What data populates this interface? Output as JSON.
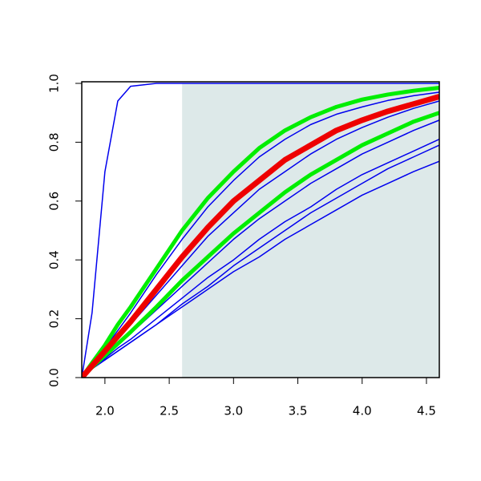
{
  "chart_data": {
    "type": "line",
    "x": [
      1.82,
      1.9,
      2.0,
      2.1,
      2.2,
      2.4,
      2.6,
      2.8,
      3.0,
      3.2,
      3.4,
      3.6,
      3.8,
      4.0,
      4.2,
      4.4,
      4.6
    ],
    "series": [
      {
        "color": "#0000ee",
        "width": 1.5,
        "values": [
          0,
          0.22,
          0.7,
          0.94,
          0.99,
          1,
          1,
          1,
          1,
          1,
          1,
          1,
          1,
          1,
          1,
          1,
          1
        ]
      },
      {
        "color": "#0000ee",
        "width": 1.5,
        "values": [
          0,
          0.03,
          0.06,
          0.09,
          0.12,
          0.18,
          0.24,
          0.3,
          0.36,
          0.41,
          0.47,
          0.52,
          0.57,
          0.62,
          0.66,
          0.7,
          0.735
        ]
      },
      {
        "color": "#0000ee",
        "width": 1.5,
        "values": [
          0,
          0.03,
          0.06,
          0.09,
          0.12,
          0.18,
          0.25,
          0.31,
          0.38,
          0.44,
          0.5,
          0.56,
          0.61,
          0.66,
          0.71,
          0.75,
          0.79
        ]
      },
      {
        "color": "#0000ee",
        "width": 1.5,
        "values": [
          0,
          0.03,
          0.065,
          0.1,
          0.13,
          0.2,
          0.27,
          0.34,
          0.4,
          0.47,
          0.53,
          0.58,
          0.64,
          0.69,
          0.73,
          0.77,
          0.81
        ]
      },
      {
        "color": "#0000ee",
        "width": 1.5,
        "values": [
          0,
          0.035,
          0.07,
          0.11,
          0.15,
          0.23,
          0.31,
          0.39,
          0.47,
          0.54,
          0.6,
          0.66,
          0.71,
          0.76,
          0.8,
          0.84,
          0.875
        ]
      },
      {
        "color": "#0000ee",
        "width": 1.5,
        "values": [
          0,
          0.04,
          0.085,
          0.13,
          0.18,
          0.28,
          0.38,
          0.48,
          0.56,
          0.64,
          0.7,
          0.76,
          0.81,
          0.85,
          0.885,
          0.915,
          0.94
        ]
      },
      {
        "color": "#0000ee",
        "width": 1.5,
        "values": [
          0,
          0.05,
          0.1,
          0.16,
          0.22,
          0.35,
          0.47,
          0.58,
          0.67,
          0.75,
          0.81,
          0.86,
          0.895,
          0.92,
          0.942,
          0.958,
          0.97
        ]
      },
      {
        "color": "#00ee00",
        "width": 5,
        "values": [
          0,
          0.035,
          0.075,
          0.115,
          0.155,
          0.24,
          0.33,
          0.41,
          0.49,
          0.56,
          0.63,
          0.69,
          0.74,
          0.79,
          0.83,
          0.87,
          0.9
        ]
      },
      {
        "color": "#00ee00",
        "width": 5,
        "values": [
          0,
          0.05,
          0.11,
          0.18,
          0.24,
          0.37,
          0.5,
          0.61,
          0.7,
          0.78,
          0.84,
          0.885,
          0.92,
          0.945,
          0.962,
          0.975,
          0.985
        ]
      },
      {
        "color": "#ee0000",
        "width": 7,
        "values": [
          0,
          0.04,
          0.09,
          0.14,
          0.19,
          0.3,
          0.41,
          0.51,
          0.6,
          0.67,
          0.74,
          0.79,
          0.84,
          0.875,
          0.905,
          0.93,
          0.955
        ]
      }
    ],
    "shade": {
      "from": 2.6,
      "color": "#dde9e9"
    },
    "xlim": [
      1.82,
      4.6
    ],
    "ylim": [
      0,
      1
    ],
    "xticks": [
      {
        "value": 2,
        "label": "2.0"
      },
      2.5,
      {
        "value": 3,
        "label": "3.0"
      },
      3.5,
      {
        "value": 4,
        "label": "4.0"
      },
      4.5
    ],
    "yticks": [
      {
        "value": 0,
        "label": "0.0"
      },
      0.2,
      0.4,
      0.6,
      0.8,
      {
        "value": 1,
        "label": "1.0"
      }
    ]
  }
}
